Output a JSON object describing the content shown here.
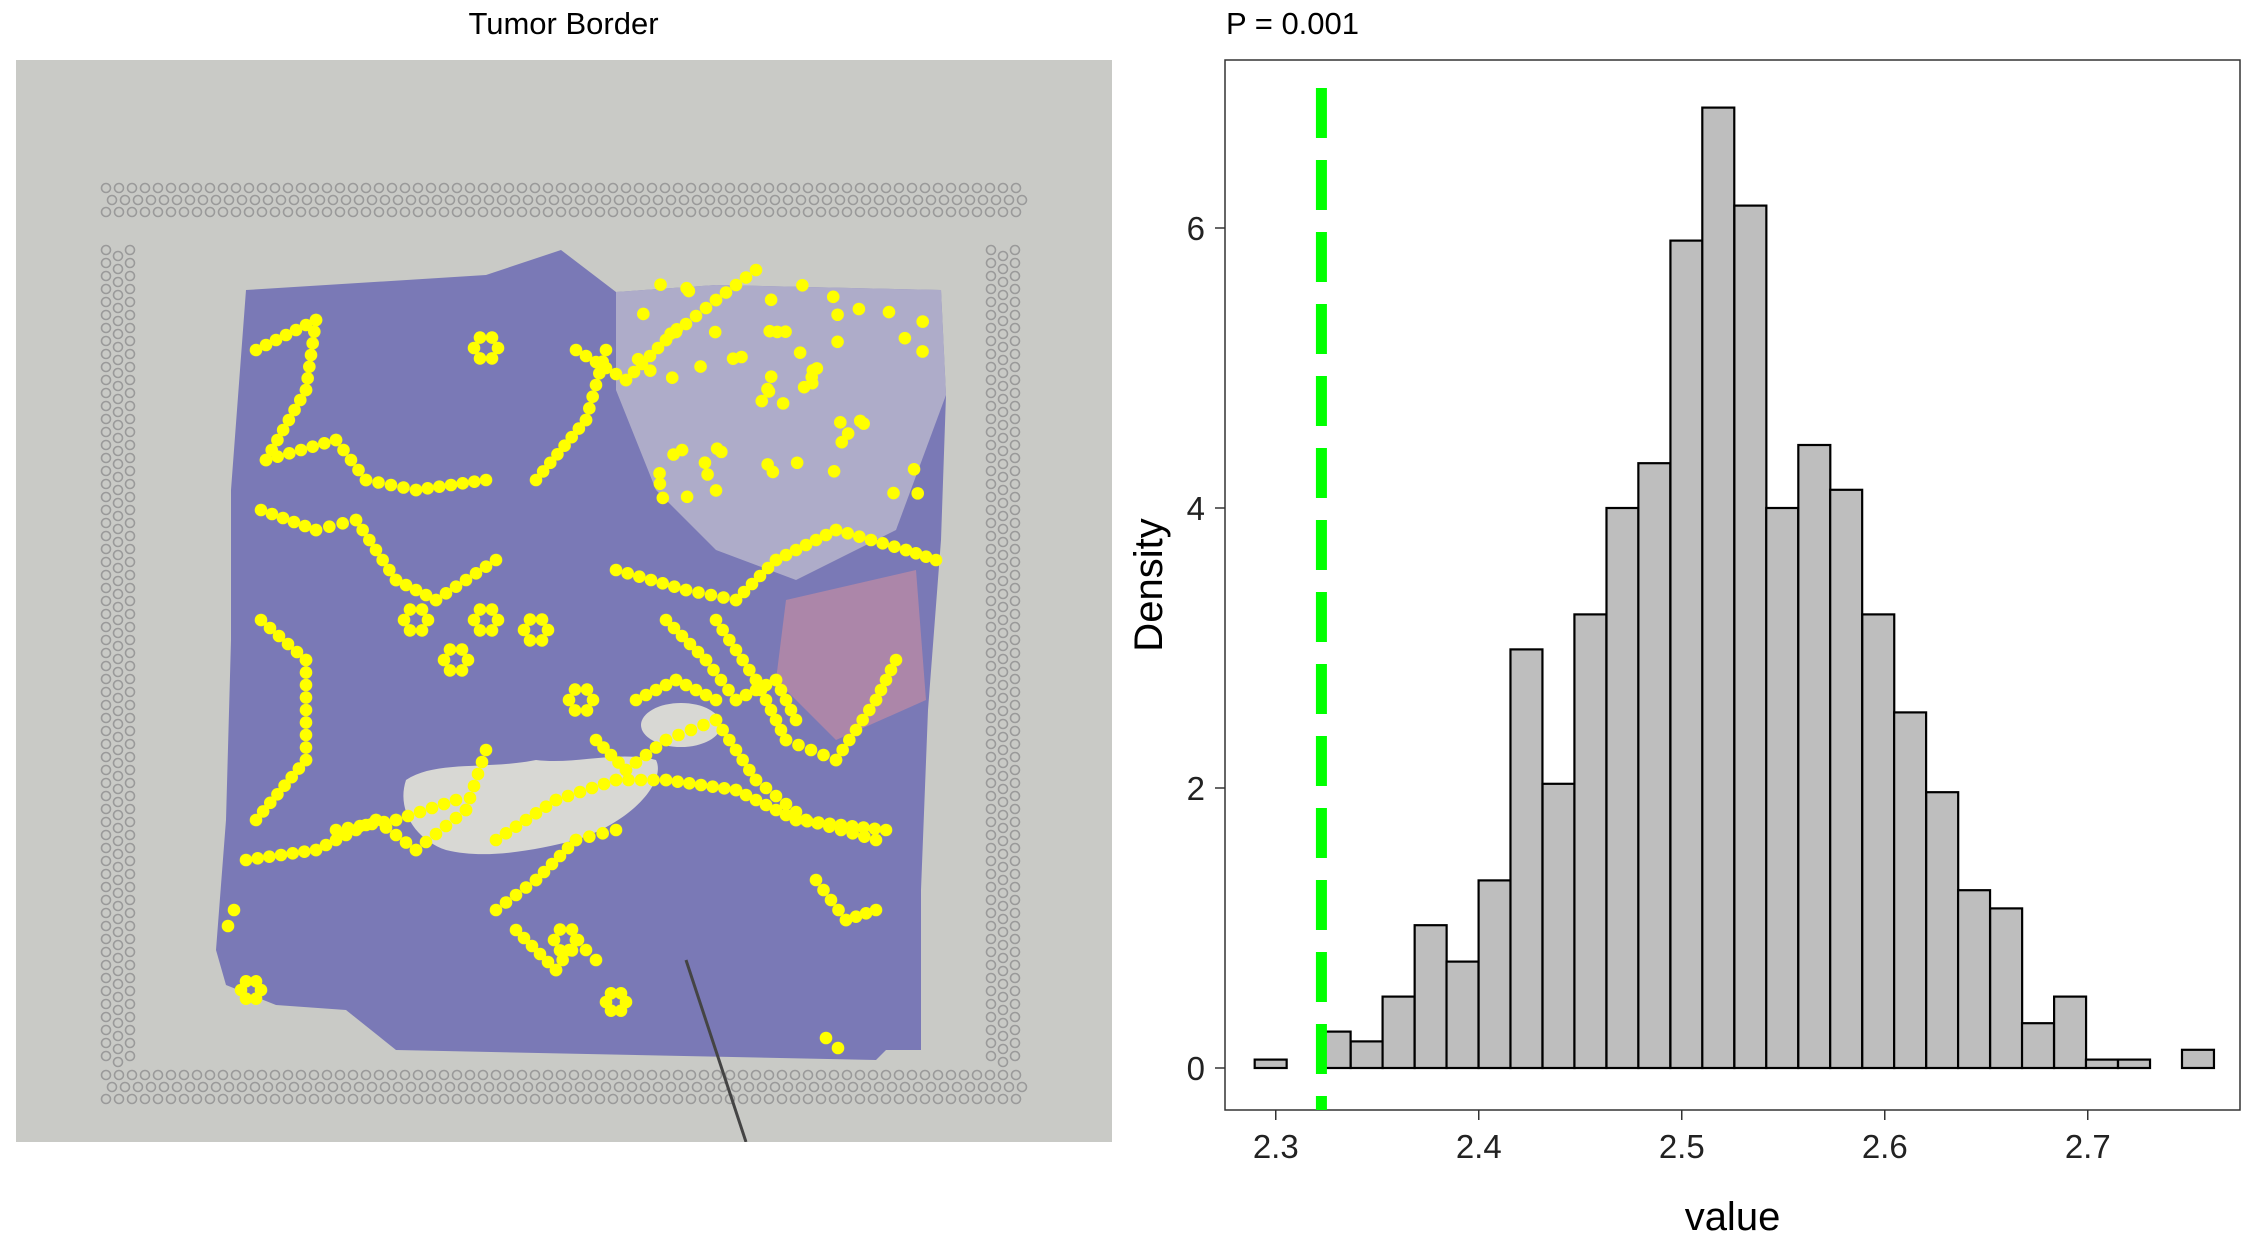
{
  "left_panel": {
    "title": "Tumor Border",
    "image_description_icon": "he-stained-tissue-with-yellow-border-spots-icon"
  },
  "chart_data": {
    "type": "bar",
    "title": "P = 0.001",
    "xlabel": "value",
    "ylabel": "Density",
    "xlim": [
      2.275,
      2.775
    ],
    "ylim": [
      -0.3,
      7.2
    ],
    "x_ticks": [
      2.3,
      2.4,
      2.5,
      2.6,
      2.7
    ],
    "x_tick_labels": [
      "2.3",
      "2.4",
      "2.5",
      "2.6",
      "2.7"
    ],
    "y_ticks": [
      0,
      2,
      4,
      6
    ],
    "y_tick_labels": [
      "0",
      "2",
      "4",
      "6"
    ],
    "bin_width": 0.01575,
    "bin_centers": [
      2.2975,
      2.3133,
      2.329,
      2.3448,
      2.3605,
      2.3763,
      2.392,
      2.4078,
      2.4235,
      2.4393,
      2.455,
      2.4708,
      2.4865,
      2.5023,
      2.518,
      2.5338,
      2.5495,
      2.5653,
      2.581,
      2.5968,
      2.6125,
      2.6283,
      2.644,
      2.6598,
      2.6755,
      2.6913,
      2.707,
      2.7228,
      2.7385,
      2.7543
    ],
    "values": [
      0.06,
      0,
      0.26,
      0.19,
      0.51,
      1.02,
      0.76,
      1.34,
      2.99,
      2.03,
      3.24,
      4.0,
      4.32,
      5.91,
      6.86,
      6.16,
      4.0,
      4.45,
      4.13,
      3.24,
      2.54,
      1.97,
      1.27,
      1.14,
      0.32,
      0.51,
      0.06,
      0.06,
      0,
      0.13
    ],
    "bar_fill": "#bebebe",
    "bar_stroke": "#000000",
    "reference_line": {
      "x": 2.3225,
      "color": "#00ff00",
      "style": "dashed"
    },
    "grid": false
  }
}
